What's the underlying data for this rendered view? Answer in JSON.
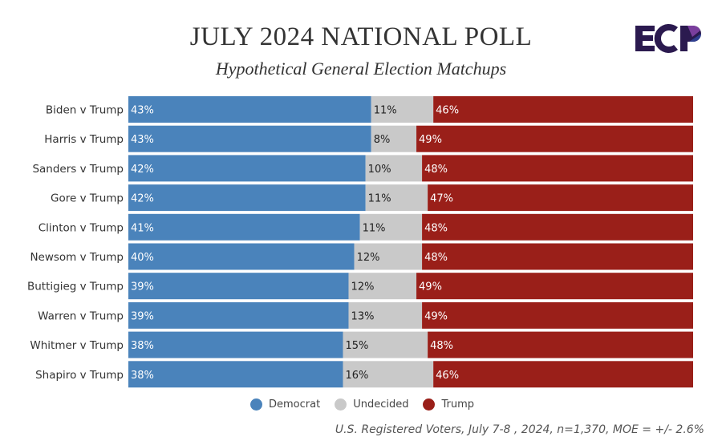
{
  "colors": {
    "democrat": "#4a83bb",
    "undecided": "#c9c9c9",
    "trump": "#9a1f19",
    "logo_dark": "#2b1a4f",
    "logo_purple": "#7a3e9d",
    "logo_blue": "#2f3f8f"
  },
  "logo_text": "ECP",
  "chart_data": {
    "type": "bar",
    "stacked": true,
    "orientation": "horizontal",
    "title": "JULY 2024 NATIONAL POLL",
    "subtitle": "Hypothetical General Election Matchups",
    "categories": [
      "Biden v Trump",
      "Harris v Trump",
      "Sanders v Trump",
      "Gore v Trump",
      "Clinton v Trump",
      "Newsom v Trump",
      "Buttigieg v Trump",
      "Warren v Trump",
      "Whitmer v Trump",
      "Shapiro v Trump"
    ],
    "series": [
      {
        "name": "Democrat",
        "values": [
          43,
          43,
          42,
          42,
          41,
          40,
          39,
          39,
          38,
          38
        ]
      },
      {
        "name": "Undecided",
        "values": [
          11,
          8,
          10,
          11,
          11,
          12,
          12,
          13,
          15,
          16
        ]
      },
      {
        "name": "Trump",
        "values": [
          46,
          49,
          48,
          47,
          48,
          48,
          49,
          49,
          48,
          46
        ]
      }
    ],
    "value_suffix": "%",
    "xlim": [
      0,
      100
    ],
    "legend": "bottom",
    "grid": false
  },
  "legend": [
    {
      "label": "Democrat"
    },
    {
      "label": "Undecided"
    },
    {
      "label": "Trump"
    }
  ],
  "footer": "U.S. Registered Voters, July 7-8 , 2024, n=1,370, MOE = +/- 2.6%"
}
